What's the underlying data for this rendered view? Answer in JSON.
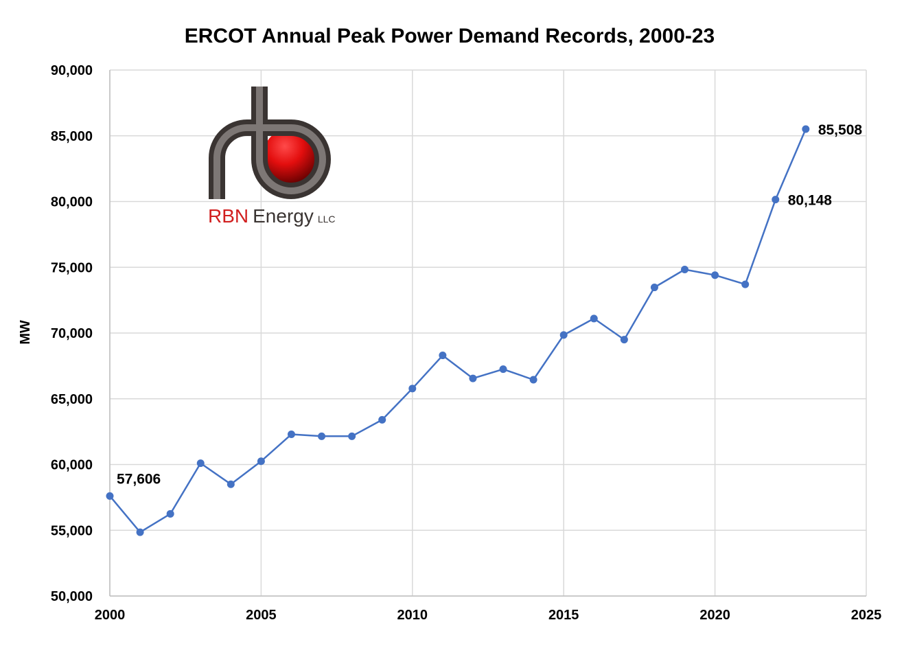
{
  "logo": {
    "brand_text": "RBN",
    "brand_text_2": "Energy",
    "suffix": "LLC",
    "colors": {
      "red": "#d11f1f",
      "pipe": "#6b6563",
      "dark": "#3a3432"
    }
  },
  "chart_data": {
    "type": "line",
    "title": "ERCOT Annual Peak Power Demand Records, 2000-23",
    "xlabel": "",
    "ylabel": "MW",
    "xlim": [
      2000,
      2025
    ],
    "ylim": [
      50000,
      90000
    ],
    "x_ticks": [
      2000,
      2005,
      2010,
      2015,
      2020,
      2025
    ],
    "x_tick_labels": [
      "2000",
      "2005",
      "2010",
      "2015",
      "2020",
      "2025"
    ],
    "y_ticks": [
      50000,
      55000,
      60000,
      65000,
      70000,
      75000,
      80000,
      85000,
      90000
    ],
    "y_tick_labels": [
      "50,000",
      "55,000",
      "60,000",
      "65,000",
      "70,000",
      "75,000",
      "80,000",
      "85,000",
      "90,000"
    ],
    "grid": true,
    "legend": "none",
    "series": [
      {
        "color": "#4472c4",
        "x": [
          2000,
          2001,
          2002,
          2003,
          2004,
          2005,
          2006,
          2007,
          2008,
          2009,
          2010,
          2011,
          2012,
          2013,
          2014,
          2015,
          2016,
          2017,
          2018,
          2019,
          2020,
          2021,
          2022,
          2023
        ],
        "y": [
          57606,
          54850,
          56250,
          60100,
          58500,
          60250,
          62300,
          62150,
          62150,
          63400,
          65780,
          68300,
          66550,
          67250,
          66450,
          69850,
          71100,
          69500,
          73470,
          74830,
          74400,
          73700,
          80148,
          85508
        ]
      }
    ],
    "annotations": [
      {
        "x": 2000,
        "y": 57606,
        "text": "57,606"
      },
      {
        "x": 2022,
        "y": 80148,
        "text": "80,148"
      },
      {
        "x": 2023,
        "y": 85508,
        "text": "85,508"
      }
    ]
  }
}
